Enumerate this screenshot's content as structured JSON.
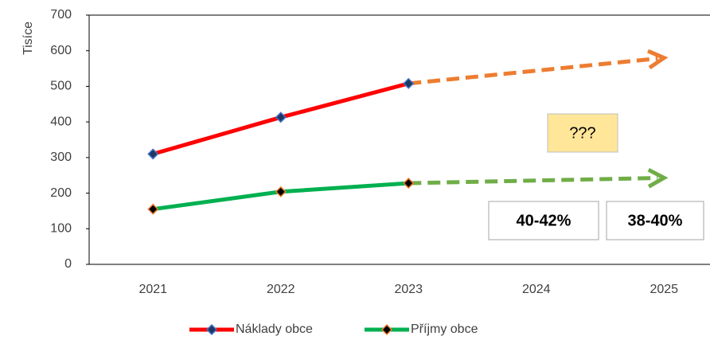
{
  "chart_data": {
    "type": "line",
    "y_label": "Tisíce",
    "categories": [
      "2021",
      "2022",
      "2023",
      "2024",
      "2025"
    ],
    "series": [
      {
        "name": "Náklady obce",
        "color": "#ff0000",
        "marker_fill": "#1f3864",
        "marker_stroke": "#4472c4",
        "values": [
          310,
          413,
          508,
          null,
          null
        ]
      },
      {
        "name": "Příjmy obce",
        "color": "#00b050",
        "marker_fill": "#000000",
        "marker_stroke": "#ed7d31",
        "values": [
          155,
          204,
          228,
          null,
          null
        ]
      }
    ],
    "projections": [
      {
        "color": "#ed7d31",
        "values": [
          null,
          null,
          508,
          null,
          580
        ]
      },
      {
        "color": "#70ad47",
        "values": [
          null,
          null,
          228,
          null,
          243
        ]
      }
    ],
    "annotations": [
      "???",
      "40-42%",
      "38-40%"
    ],
    "ylim": [
      0,
      700
    ],
    "yticks": [
      0,
      100,
      200,
      300,
      400,
      500,
      600,
      700
    ],
    "grid": false
  }
}
